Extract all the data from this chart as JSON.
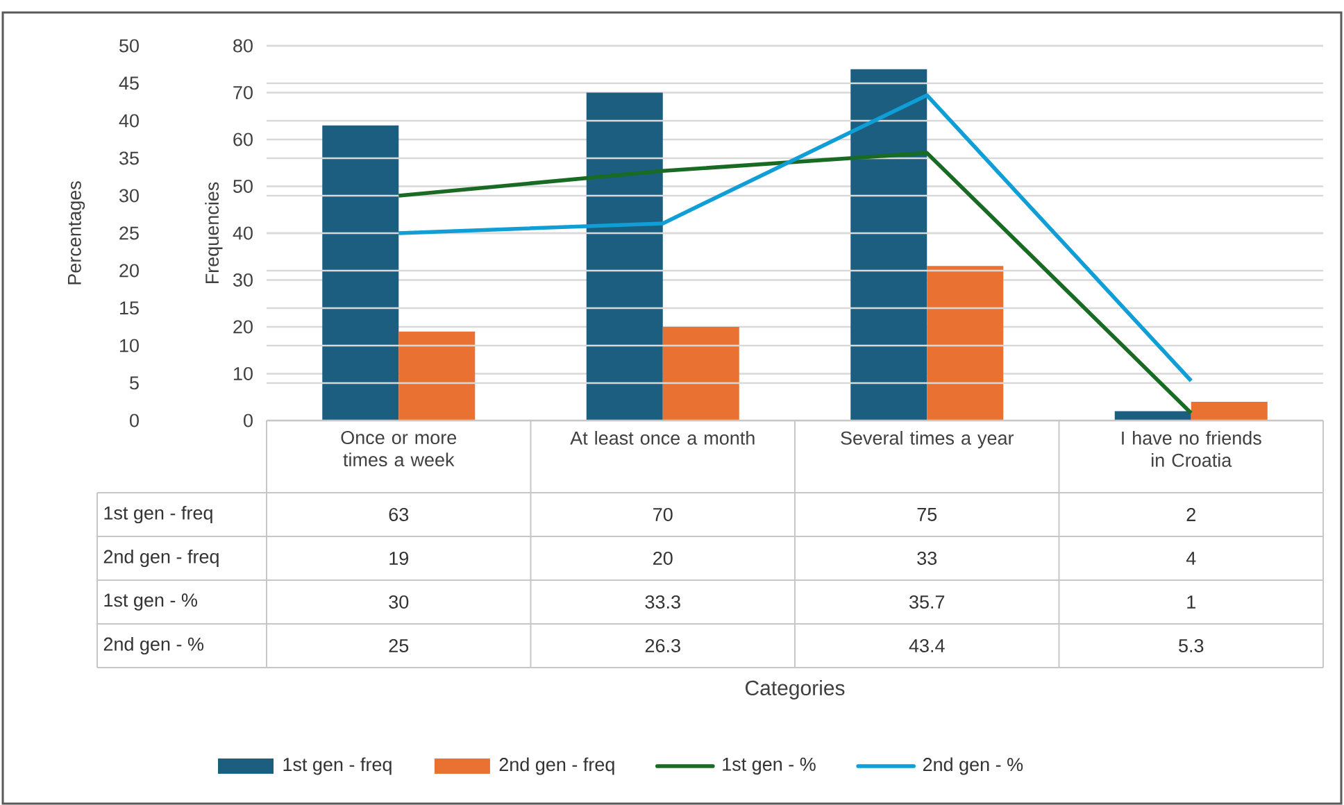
{
  "chart_data": {
    "type": "bar",
    "categories": [
      "Once or more times a week",
      "At least once a month",
      "Several times a year",
      "I have no friends in Croatia"
    ],
    "series": [
      {
        "name": "1st gen - freq",
        "color": "#1b5e80",
        "values": [
          63,
          70,
          75,
          2
        ]
      },
      {
        "name": "2nd gen - freq",
        "color": "#e97132",
        "values": [
          19,
          20,
          33,
          4
        ]
      },
      {
        "name": "1st gen - %",
        "type": "line",
        "axis": "y2",
        "color": "#196b24",
        "values": [
          30,
          33.3,
          35.7,
          1
        ]
      },
      {
        "name": "2nd gen - %",
        "type": "line",
        "axis": "y2",
        "color": "#0f9ed5",
        "values": [
          25,
          26.3,
          43.4,
          5.3
        ]
      }
    ],
    "annotations": [
      "Categories"
    ],
    "ylabel": "Frequencies",
    "y2label": "Percentages",
    "ylim": [
      0,
      80
    ],
    "yticks": [
      0,
      10,
      20,
      30,
      40,
      50,
      60,
      70,
      80
    ],
    "y2lim": [
      0,
      50
    ],
    "y2ticks": [
      0,
      5,
      10,
      15,
      20,
      25,
      30,
      35,
      40,
      45,
      50
    ],
    "grid": true,
    "legend": "bottom",
    "data_labels": true,
    "marker": "none",
    "line_style": "solid"
  }
}
